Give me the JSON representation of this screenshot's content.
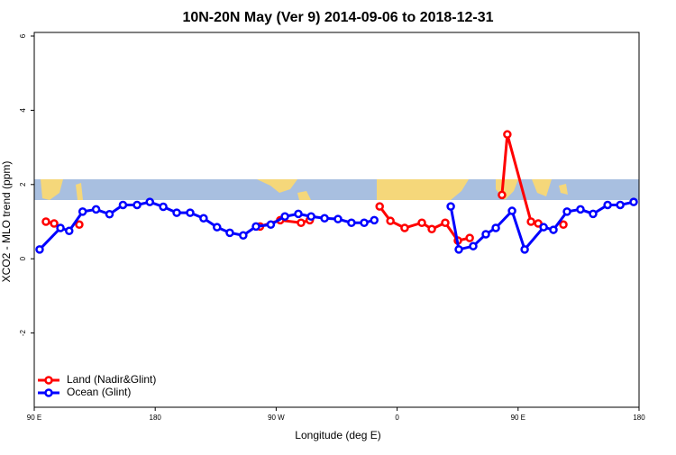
{
  "chart_data": {
    "type": "line",
    "title": "10N-20N May (Ver 9)   2014-09-06 to 2018-12-31",
    "x_label": "Longitude (deg E)",
    "y_label": "XCO2 - MLO trend (ppm)",
    "xlim": [
      90,
      540
    ],
    "ylim": [
      -4,
      6
    ],
    "xticks": [
      {
        "value": 90,
        "label": "90 E"
      },
      {
        "value": 180,
        "label": "180"
      },
      {
        "value": 270,
        "label": "90 W"
      },
      {
        "value": 360,
        "label": "0"
      },
      {
        "value": 450,
        "label": "90 E"
      },
      {
        "value": 540,
        "label": "180"
      }
    ],
    "yticks": [
      -2,
      0,
      2,
      4,
      6
    ],
    "legend": "bottom-left",
    "series": [
      {
        "name": "Land (Nadir&Glint)",
        "color": "#ff0000",
        "x": [
          98.7,
          104.8,
          null,
          123.5,
          null,
          258,
          273,
          288.5,
          295,
          null,
          347,
          355,
          365.6,
          378.4,
          385.8,
          395.8,
          405.2,
          414,
          null,
          438,
          442,
          459.6,
          465,
          null,
          483.7
        ],
        "values": [
          1.0,
          0.95,
          null,
          0.92,
          null,
          0.87,
          1.04,
          0.97,
          1.04,
          null,
          1.41,
          1.02,
          0.83,
          0.97,
          0.8,
          0.97,
          0.49,
          0.56,
          null,
          1.72,
          3.35,
          1.0,
          0.95,
          null,
          0.92
        ]
      },
      {
        "name": "Ocean (Glint)",
        "color": "#0000ff",
        "x": [
          94,
          109.5,
          116,
          126,
          136,
          146,
          156,
          166.5,
          176,
          186,
          196,
          206,
          216,
          226,
          235.5,
          245.5,
          255,
          266,
          276.5,
          286.5,
          296,
          306,
          316,
          326,
          335.5,
          343,
          null,
          399.9,
          405.9,
          416.6,
          426,
          433.4,
          445.5,
          454.9,
          469,
          476.3,
          486.4,
          496.4,
          505.8,
          516.6,
          526,
          536
        ],
        "values": [
          0.25,
          0.83,
          0.75,
          1.27,
          1.33,
          1.2,
          1.45,
          1.45,
          1.53,
          1.4,
          1.24,
          1.24,
          1.09,
          0.85,
          0.7,
          0.63,
          0.87,
          0.92,
          1.14,
          1.21,
          1.14,
          1.09,
          1.07,
          0.97,
          0.97,
          1.04,
          null,
          1.41,
          0.25,
          0.34,
          0.66,
          0.83,
          1.29,
          0.25,
          0.85,
          0.78,
          1.27,
          1.33,
          1.21,
          1.45,
          1.45,
          1.53
        ]
      }
    ]
  }
}
